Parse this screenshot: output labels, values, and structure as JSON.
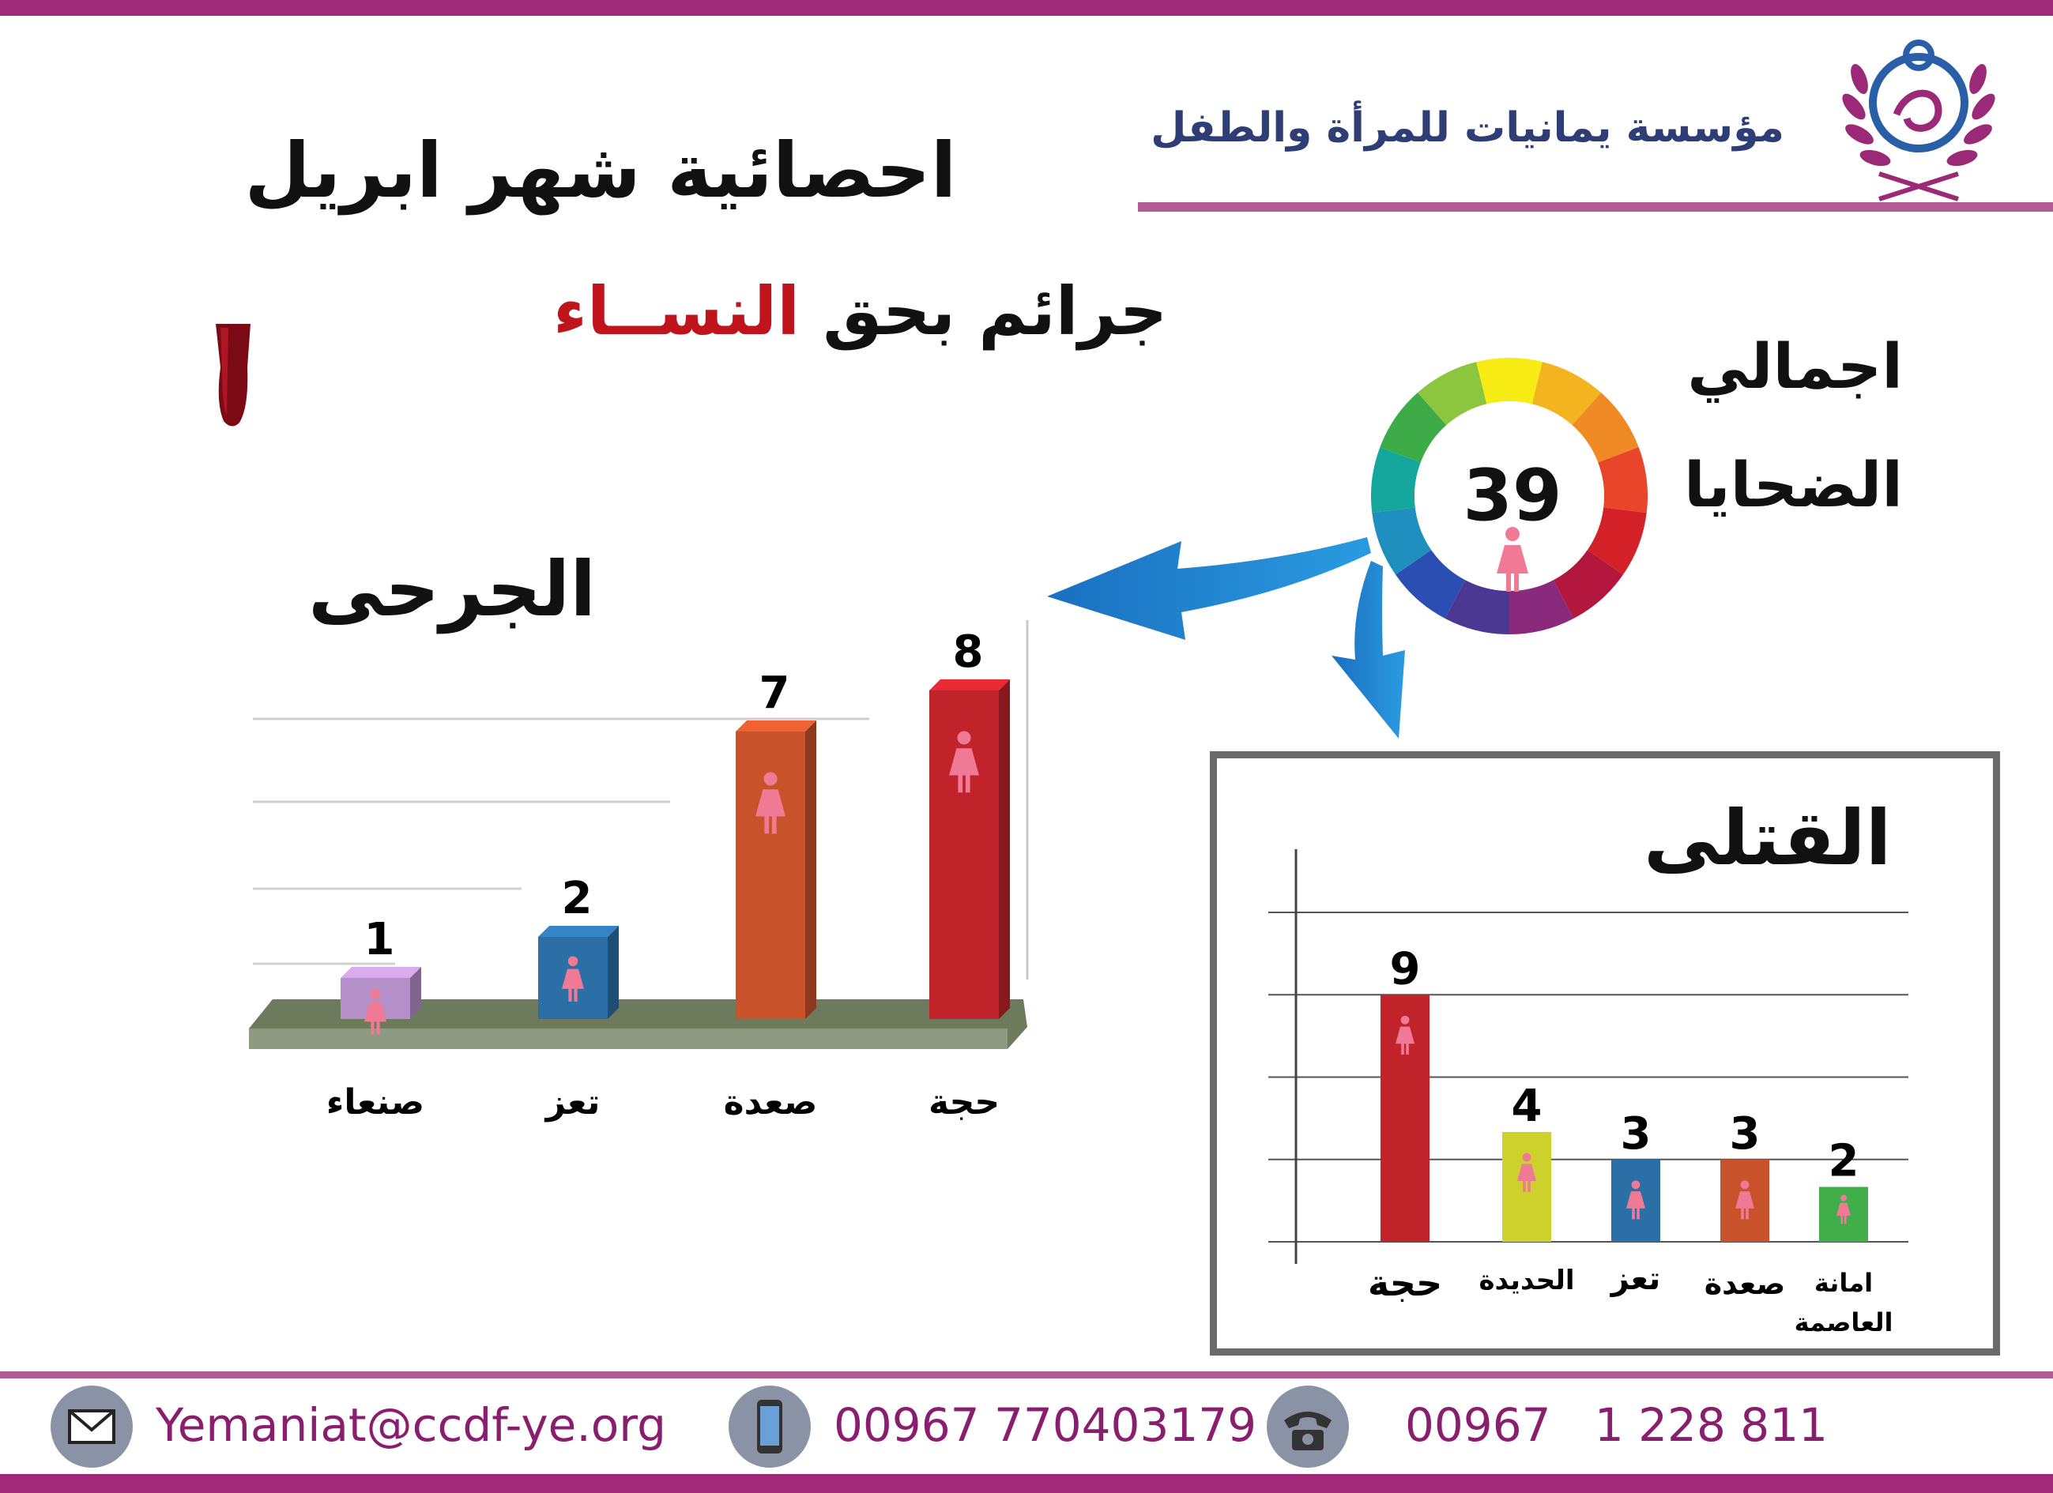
{
  "organization": {
    "name": "مؤسسة  يمانيات للمرأة والطفل"
  },
  "header": {
    "title_line1": "احصائية شهر ابريل",
    "title_line2_part1": "جرائم  بحق ",
    "title_line2_highlight": "النســاء"
  },
  "total": {
    "label_line1": "اجمالي",
    "label_line2": "الضحايا",
    "value": "39"
  },
  "colors": {
    "brand_purple": "#a0297a",
    "navy": "#2e3e74",
    "highlight_red": "#c0141c",
    "woman_icon": "#f07a96"
  },
  "chart_data": [
    {
      "type": "bar",
      "title": "الجرحى",
      "categories": [
        "صنعاء",
        "تعز",
        "صعدة",
        "حجة"
      ],
      "values": [
        1,
        2,
        7,
        8
      ],
      "colors": [
        "#b58fc7",
        "#2c6ea6",
        "#c8522a",
        "#c1232b"
      ],
      "ylim": [
        0,
        9
      ],
      "grid": true
    },
    {
      "type": "bar",
      "title": "القتلى",
      "categories": [
        "حجة",
        "الحديدة",
        "تعز",
        "صعدة",
        "امانة العاصمة"
      ],
      "values": [
        9,
        4,
        3,
        3,
        2
      ],
      "colors": [
        "#c1232b",
        "#cdd12b",
        "#2c6ea6",
        "#c8522a",
        "#3fae49"
      ],
      "ylim": [
        0,
        12
      ],
      "grid": true
    }
  ],
  "footer": {
    "email": "Yemaniat@ccdf-ye.org",
    "mobile": "00967 770403179",
    "phone": "00967   1 228 811",
    "email_icon": "envelope-icon",
    "mobile_icon": "smartphone-icon",
    "phone_icon": "telephone-icon"
  }
}
